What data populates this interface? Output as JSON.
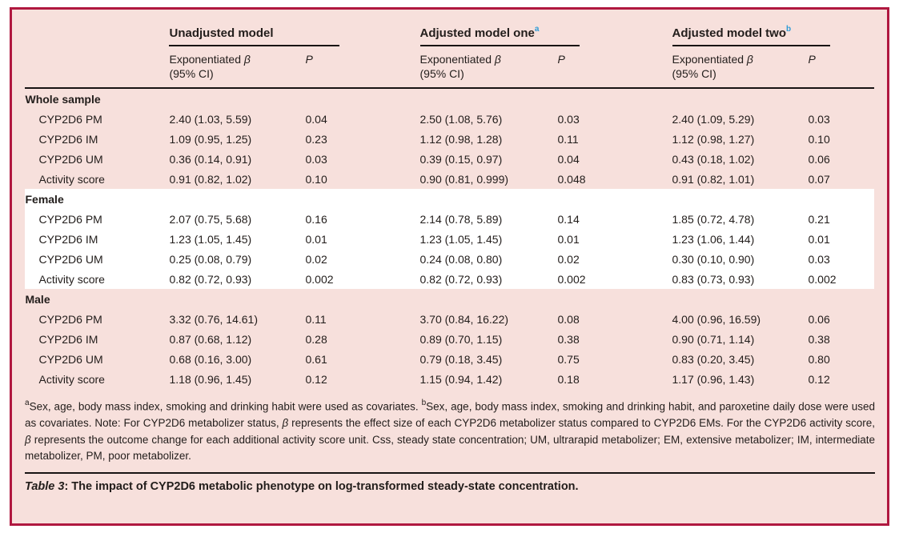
{
  "colors": {
    "frame_border": "#b01840",
    "background": "#f7e0dc",
    "highlight_band": "#ffffff",
    "text": "#221d1b",
    "superscript_accent": "#2e9bd6",
    "rule": "#181413"
  },
  "header": {
    "groups": [
      {
        "label": "Unadjusted model",
        "sup": ""
      },
      {
        "label": "Adjusted model one",
        "sup": "a"
      },
      {
        "label": "Adjusted model two",
        "sup": "b"
      }
    ],
    "sub": {
      "beta_label": "Exponentiated ",
      "beta_symbol": "β",
      "ci": "(95% CI)",
      "p": "P"
    }
  },
  "table": {
    "sections": [
      {
        "name": "Whole sample",
        "highlight": false,
        "rows": [
          {
            "label": "CYP2D6 PM",
            "cells": [
              "2.40 (1.03, 5.59)",
              "0.04",
              "2.50 (1.08, 5.76)",
              "0.03",
              "2.40 (1.09, 5.29)",
              "0.03"
            ]
          },
          {
            "label": "CYP2D6 IM",
            "cells": [
              "1.09 (0.95, 1.25)",
              "0.23",
              "1.12 (0.98, 1.28)",
              "0.11",
              "1.12 (0.98, 1.27)",
              "0.10"
            ]
          },
          {
            "label": "CYP2D6 UM",
            "cells": [
              "0.36 (0.14, 0.91)",
              "0.03",
              "0.39 (0.15, 0.97)",
              "0.04",
              "0.43 (0.18, 1.02)",
              "0.06"
            ]
          },
          {
            "label": "Activity score",
            "cells": [
              "0.91 (0.82, 1.02)",
              "0.10",
              "0.90 (0.81, 0.999)",
              "0.048",
              "0.91 (0.82, 1.01)",
              "0.07"
            ]
          }
        ]
      },
      {
        "name": "Female",
        "highlight": true,
        "rows": [
          {
            "label": "CYP2D6 PM",
            "cells": [
              "2.07 (0.75, 5.68)",
              "0.16",
              "2.14 (0.78, 5.89)",
              "0.14",
              "1.85 (0.72, 4.78)",
              "0.21"
            ]
          },
          {
            "label": "CYP2D6 IM",
            "cells": [
              "1.23 (1.05, 1.45)",
              "0.01",
              "1.23 (1.05, 1.45)",
              "0.01",
              "1.23 (1.06, 1.44)",
              "0.01"
            ]
          },
          {
            "label": "CYP2D6 UM",
            "cells": [
              "0.25 (0.08, 0.79)",
              "0.02",
              "0.24 (0.08, 0.80)",
              "0.02",
              "0.30 (0.10, 0.90)",
              "0.03"
            ]
          },
          {
            "label": "Activity score",
            "cells": [
              "0.82 (0.72, 0.93)",
              "0.002",
              "0.82 (0.72, 0.93)",
              "0.002",
              "0.83 (0.73, 0.93)",
              "0.002"
            ]
          }
        ]
      },
      {
        "name": "Male",
        "highlight": false,
        "rows": [
          {
            "label": "CYP2D6 PM",
            "cells": [
              "3.32 (0.76, 14.61)",
              "0.11",
              "3.70 (0.84, 16.22)",
              "0.08",
              "4.00 (0.96, 16.59)",
              "0.06"
            ]
          },
          {
            "label": "CYP2D6 IM",
            "cells": [
              "0.87 (0.68, 1.12)",
              "0.28",
              "0.89 (0.70, 1.15)",
              "0.38",
              "0.90 (0.71, 1.14)",
              "0.38"
            ]
          },
          {
            "label": "CYP2D6 UM",
            "cells": [
              "0.68 (0.16, 3.00)",
              "0.61",
              "0.79 (0.18, 3.45)",
              "0.75",
              "0.83 (0.20, 3.45)",
              "0.80"
            ]
          },
          {
            "label": "Activity score",
            "cells": [
              "1.18 (0.96, 1.45)",
              "0.12",
              "1.15 (0.94, 1.42)",
              "0.18",
              "1.17 (0.96, 1.43)",
              "0.12"
            ]
          }
        ]
      }
    ]
  },
  "footnote": {
    "segments": [
      {
        "sup": "a",
        "text": "Sex, age, body mass index, smoking and drinking habit were used as covariates. "
      },
      {
        "sup": "b",
        "text": "Sex, age, body mass index, smoking and drinking habit, and paroxetine daily dose were used as covariates. Note: For CYP2D6 metabolizer status, "
      },
      {
        "italic": "β",
        "text": " represents the effect size of each CYP2D6 metabolizer status compared to CYP2D6 EMs. For the CYP2D6 activity score, "
      },
      {
        "italic": "β",
        "text": " represents the outcome change for each additional activity score unit. Css, steady state concentration; UM, ultrarapid metabolizer; EM, extensive metabolizer; IM, intermediate metabolizer, PM, poor metabolizer."
      }
    ]
  },
  "caption": {
    "label": "Table 3",
    "rest": ": The impact of CYP2D6 metabolic phenotype on log-transformed steady-state concentration."
  }
}
